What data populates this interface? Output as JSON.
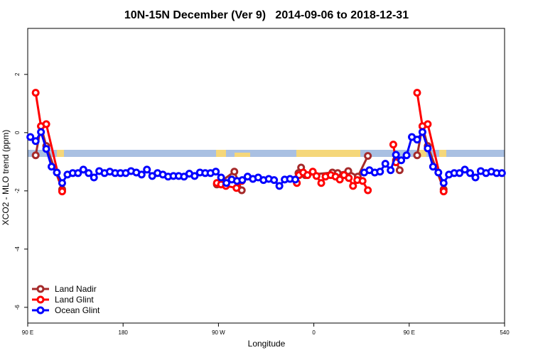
{
  "chart_data": {
    "type": "line",
    "title": "10N-15N December (Ver 9)   2014-09-06 to 2018-12-31",
    "x_label": "Longitude",
    "y_label": "XCO2 - MLO trend (ppm)",
    "xlim": [
      90,
      540
    ],
    "ylim": [
      -6.54,
      3.58
    ],
    "xticks": [
      {
        "value": 90,
        "label": "90 E"
      },
      180,
      {
        "value": 270,
        "label": "90 W"
      },
      {
        "value": 360,
        "label": "0"
      },
      {
        "value": 450,
        "label": "90 E"
      },
      540
    ],
    "yticks": [
      -6,
      -4,
      -2,
      0,
      2
    ],
    "legend": "bottom-left",
    "series": [
      {
        "name": "Land Nadir",
        "color": "#a52a2a",
        "x": [
          97.5,
          102.5,
          107.5,
          122.5,
          null,
          268.5,
          285,
          292,
          null,
          345.5,
          348,
          352,
          377.5,
          382.5,
          392.5,
          401.5,
          411,
          null,
          437.5,
          441,
          null,
          457.5,
          462.5,
          467.5,
          482.5
        ],
        "values": [
          -0.78,
          0.22,
          -0.46,
          -1.95,
          null,
          -1.78,
          -1.34,
          -1.98,
          null,
          -1.39,
          -1.2,
          -1.46,
          -1.37,
          -1.39,
          -1.32,
          -1.51,
          -0.8,
          null,
          -0.95,
          -1.29,
          null,
          -0.78,
          0.22,
          -0.46,
          -1.95
        ]
      },
      {
        "name": "Land Glint",
        "color": "#ff0000",
        "x": [
          97.5,
          102.5,
          107.5,
          122.5,
          null,
          268.5,
          272.5,
          277,
          287,
          292,
          null,
          344,
          346,
          350,
          354,
          359,
          362.5,
          367,
          371,
          376,
          380.5,
          384.5,
          388.5,
          393,
          397,
          401,
          406,
          411,
          null,
          435,
          437.5,
          null,
          457.5,
          462.5,
          467.5,
          482.5
        ],
        "values": [
          1.37,
          0.22,
          0.29,
          -2.02,
          null,
          -1.73,
          -1.78,
          -1.83,
          -1.9,
          -1.66,
          null,
          -1.73,
          -1.46,
          -1.37,
          -1.46,
          -1.34,
          -1.49,
          -1.73,
          -1.51,
          -1.46,
          -1.51,
          -1.61,
          -1.46,
          -1.56,
          -1.83,
          -1.63,
          -1.66,
          -1.98,
          null,
          -0.41,
          -1.02,
          null,
          1.37,
          0.22,
          0.29,
          -2.02
        ]
      },
      {
        "name": "Ocean Glint",
        "color": "#0000ff",
        "x": [
          92.5,
          97.5,
          102.5,
          107.5,
          112.5,
          117.5,
          122.5,
          127.5,
          132.5,
          137.5,
          142.5,
          147.5,
          152.5,
          157.5,
          162.5,
          167.5,
          172.5,
          177.5,
          182.5,
          187.5,
          192.5,
          197.5,
          202.5,
          207.5,
          212.5,
          217.5,
          222.5,
          227.5,
          232.5,
          237.5,
          242.5,
          247.5,
          252.5,
          257.5,
          262.5,
          267.5,
          272.5,
          277.5,
          282.5,
          287.5,
          292.5,
          297.5,
          302.5,
          307.5,
          312.5,
          317.5,
          322.5,
          327.5,
          332.5,
          337.5,
          342.5,
          null,
          407.5,
          412.5,
          417.5,
          422.5,
          427.5,
          432.5,
          437.5,
          442.5,
          447.5,
          452.5,
          457.5,
          462.5,
          467.5,
          472.5,
          477.5,
          482.5,
          487.5,
          492.5,
          497.5,
          502.5,
          507.5,
          512.5,
          517.5,
          522.5,
          527.5,
          532.5,
          537.5
        ],
        "values": [
          -0.15,
          -0.29,
          0.02,
          -0.56,
          -1.17,
          -1.37,
          -1.73,
          -1.44,
          -1.39,
          -1.39,
          -1.27,
          -1.39,
          -1.54,
          -1.32,
          -1.39,
          -1.34,
          -1.39,
          -1.39,
          -1.39,
          -1.32,
          -1.37,
          -1.44,
          -1.27,
          -1.49,
          -1.39,
          -1.44,
          -1.51,
          -1.49,
          -1.49,
          -1.51,
          -1.41,
          -1.49,
          -1.37,
          -1.39,
          -1.39,
          -1.34,
          -1.54,
          -1.73,
          -1.61,
          -1.66,
          -1.63,
          -1.51,
          -1.59,
          -1.54,
          -1.63,
          -1.59,
          -1.63,
          -1.83,
          -1.61,
          -1.59,
          -1.61,
          null,
          -1.37,
          -1.29,
          -1.37,
          -1.34,
          -1.07,
          -1.29,
          -0.76,
          -0.95,
          -0.78,
          -0.15,
          -0.24,
          0.02,
          -0.54,
          -1.17,
          -1.37,
          -1.73,
          -1.44,
          -1.39,
          -1.39,
          -1.27,
          -1.39,
          -1.54,
          -1.32,
          -1.39,
          -1.34,
          -1.39,
          -1.39
        ]
      }
    ]
  }
}
